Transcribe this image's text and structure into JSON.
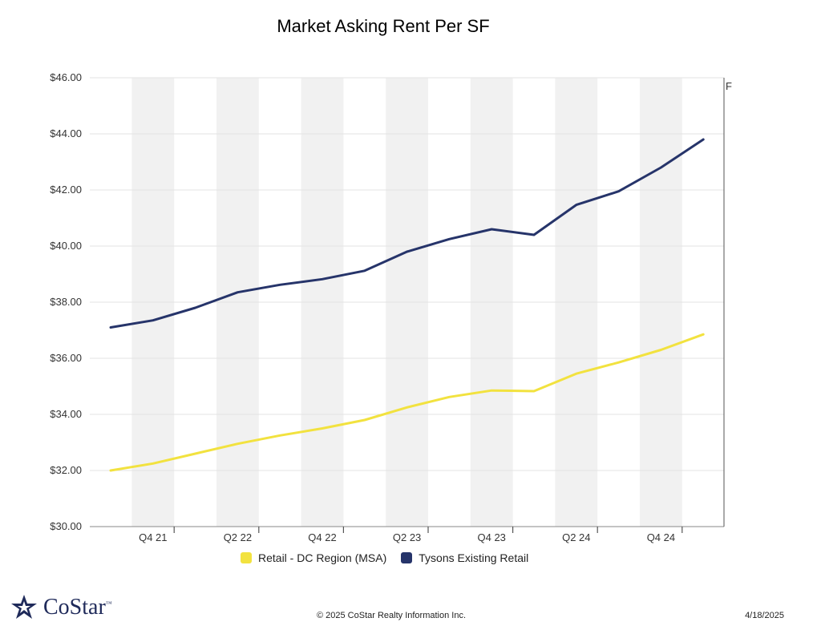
{
  "colors": {
    "dc_region": "#f2e23f",
    "tysons": "#26346a",
    "band": "#f1f1f1",
    "grid": "#e3e3e3"
  },
  "cropped_label": "F",
  "footer": {
    "copyright": "© 2025 CoStar Realty Information Inc.",
    "date": "4/18/2025"
  },
  "logo": {
    "text": "CoStar",
    "tm": "™",
    "icon": "costar-star-icon"
  },
  "chart_data": {
    "type": "line",
    "title": "Market Asking Rent Per SF",
    "xlabel": "",
    "ylabel": "",
    "ylim": [
      30,
      46
    ],
    "y_ticks": [
      "$30.00",
      "$32.00",
      "$34.00",
      "$36.00",
      "$38.00",
      "$40.00",
      "$42.00",
      "$44.00",
      "$46.00"
    ],
    "x": [
      "Q3 21",
      "Q4 21",
      "Q1 22",
      "Q2 22",
      "Q3 22",
      "Q4 22",
      "Q1 23",
      "Q2 23",
      "Q3 23",
      "Q4 23",
      "Q1 24",
      "Q2 24",
      "Q3 24",
      "Q4 24",
      "Q1 25"
    ],
    "x_tick_labels": [
      "Q4 21",
      "Q2 22",
      "Q4 22",
      "Q2 23",
      "Q4 23",
      "Q2 24",
      "Q4 24"
    ],
    "grid": true,
    "legend_position": "bottom",
    "series": [
      {
        "name": "Retail - DC Region (MSA)",
        "color": "#f2e23f",
        "values": [
          32.0,
          32.25,
          32.6,
          32.95,
          33.25,
          33.5,
          33.8,
          34.25,
          34.62,
          34.85,
          34.83,
          35.45,
          35.85,
          36.3,
          36.85
        ]
      },
      {
        "name": "Tysons Existing Retail",
        "color": "#26346a",
        "values": [
          37.1,
          37.35,
          37.8,
          38.35,
          38.62,
          38.82,
          39.12,
          39.8,
          40.25,
          40.6,
          40.4,
          41.47,
          41.95,
          42.8,
          43.8
        ]
      }
    ]
  }
}
